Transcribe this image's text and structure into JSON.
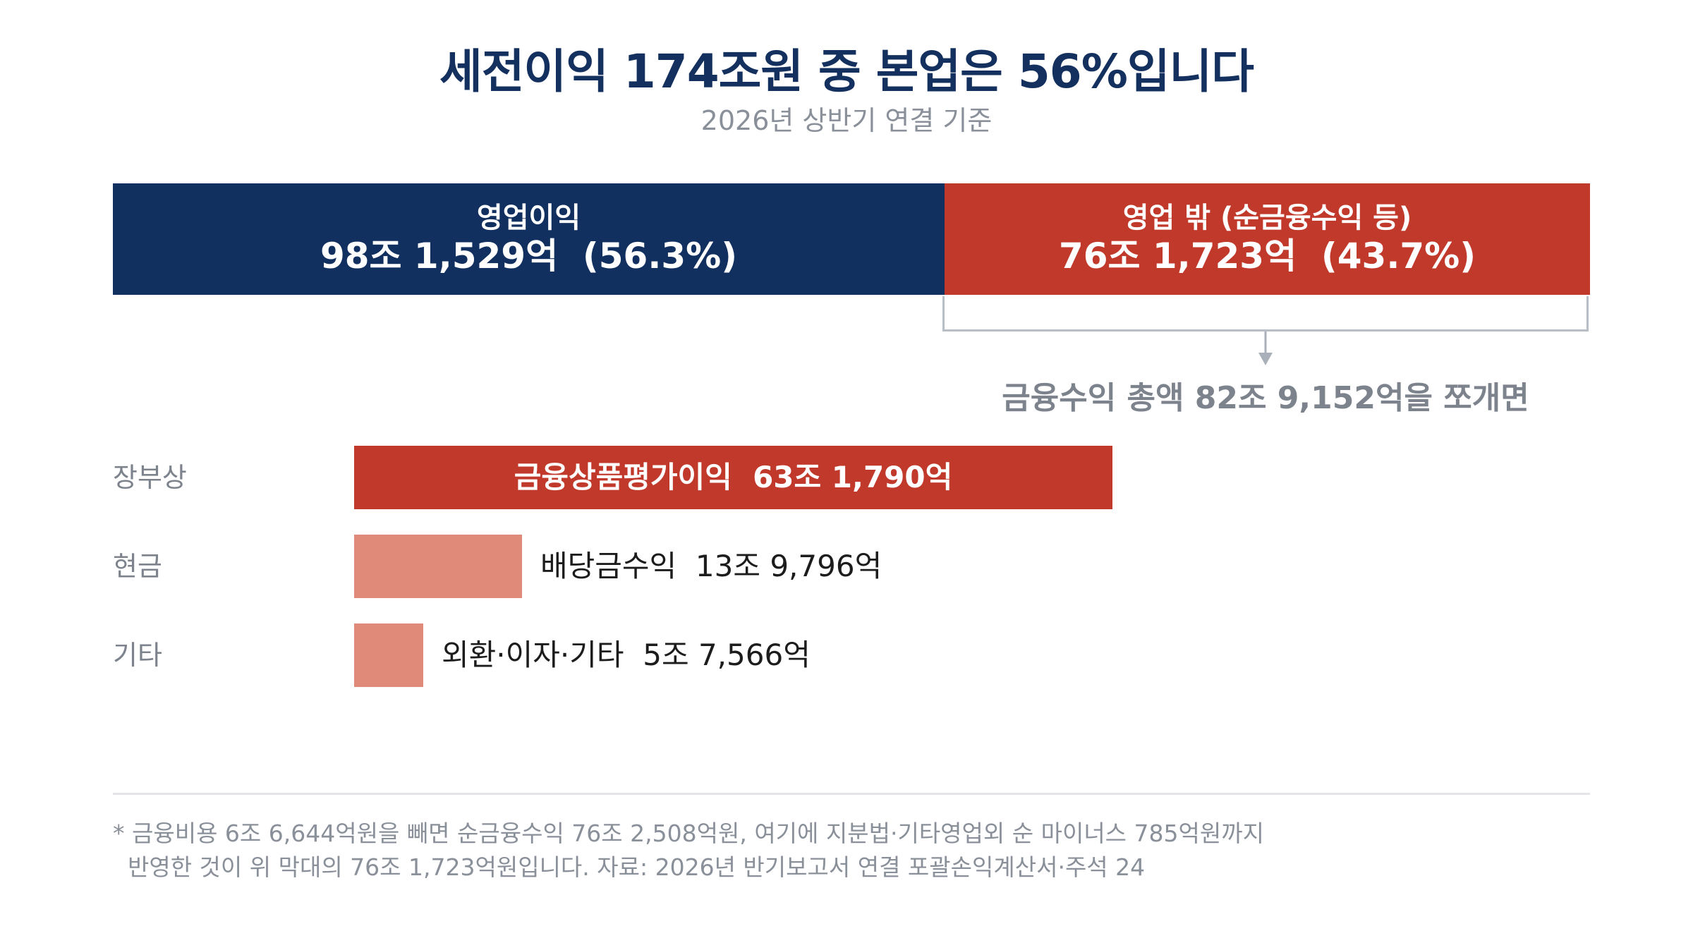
{
  "title": "세전이익 174조원 중 본업은 56%입니다",
  "subtitle": "2026년 상반기 연결 기준",
  "colors": {
    "navy": "#112f5f",
    "red": "#c0392b",
    "salmon": "#e08b7a",
    "gray_text": "#7d838c"
  },
  "chart_data": [
    {
      "type": "bar",
      "orientation": "horizontal-stacked",
      "unit": "억원",
      "total": 1743252,
      "segments": [
        {
          "label": "영업이익",
          "value": 981529,
          "value_label": "98조 1,529억  (56.3%)",
          "share": 56.3,
          "color": "#112f5f"
        },
        {
          "label": "영업 밖 (순금융수익 등)",
          "value": 761723,
          "value_label": "76조 1,723억  (43.7%)",
          "share": 43.7,
          "color": "#c0392b"
        }
      ]
    },
    {
      "type": "bar",
      "orientation": "horizontal",
      "unit": "억원",
      "caption": "금융수익 총액 82조 9,152억을 쪼개면",
      "xlim": [
        0,
        829152
      ],
      "rows": [
        {
          "category": "장부상",
          "label": "금융상품평가이익  63조 1,790억",
          "value": 631790,
          "color": "#c0392b",
          "label_position": "inside"
        },
        {
          "category": "현금",
          "label": "배당금수익  13조 9,796억",
          "value": 139796,
          "color": "#e08b7a",
          "label_position": "outside"
        },
        {
          "category": "기타",
          "label": "외환·이자·기타  5조 7,566억",
          "value": 57566,
          "color": "#e08b7a",
          "label_position": "outside"
        }
      ]
    }
  ],
  "footnote": {
    "line1": "* 금융비용 6조 6,644억원을 빼면 순금융수익 76조 2,508억원, 여기에 지분법·기타영업외 순 마이너스 785억원까지",
    "line2": "  반영한 것이 위 막대의 76조 1,723억원입니다. 자료: 2026년 반기보고서 연결 포괄손익계산서·주석 24"
  }
}
